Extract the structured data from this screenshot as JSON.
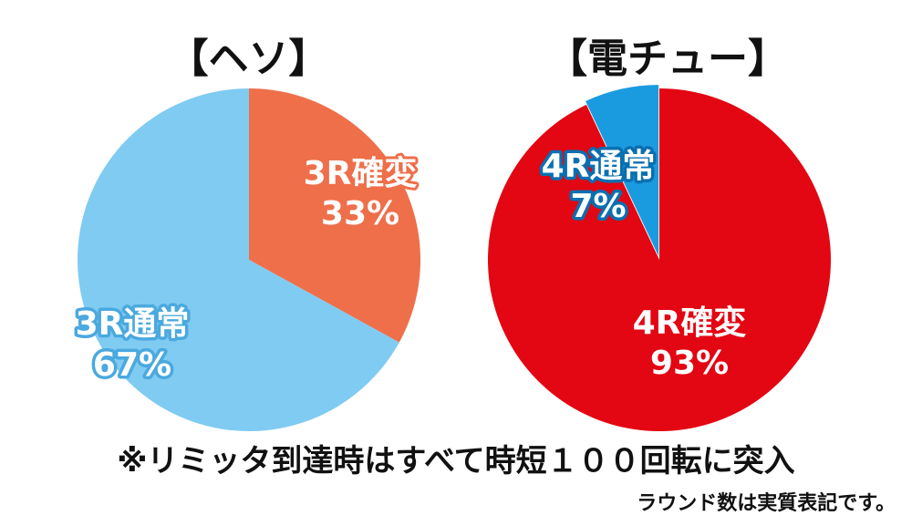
{
  "chart_data": [
    {
      "type": "pie",
      "title": "【ヘソ】",
      "slices": [
        {
          "label": "3R確変",
          "value": 33,
          "value_text": "33%",
          "color": "#ee6f4a"
        },
        {
          "label": "3R通常",
          "value": 67,
          "value_text": "67%",
          "color": "#80cbf2"
        }
      ]
    },
    {
      "type": "pie",
      "title": "【電チュー】",
      "slices": [
        {
          "label": "4R確変",
          "value": 93,
          "value_text": "93%",
          "color": "#e30613"
        },
        {
          "label": "4R通常",
          "value": 7,
          "value_text": "7%",
          "color": "#1a9be0"
        }
      ]
    }
  ],
  "footnote": "※リミッタ到達時はすべて時短１００回転に突入",
  "subnote": "ラウンド数は実質表記です。"
}
